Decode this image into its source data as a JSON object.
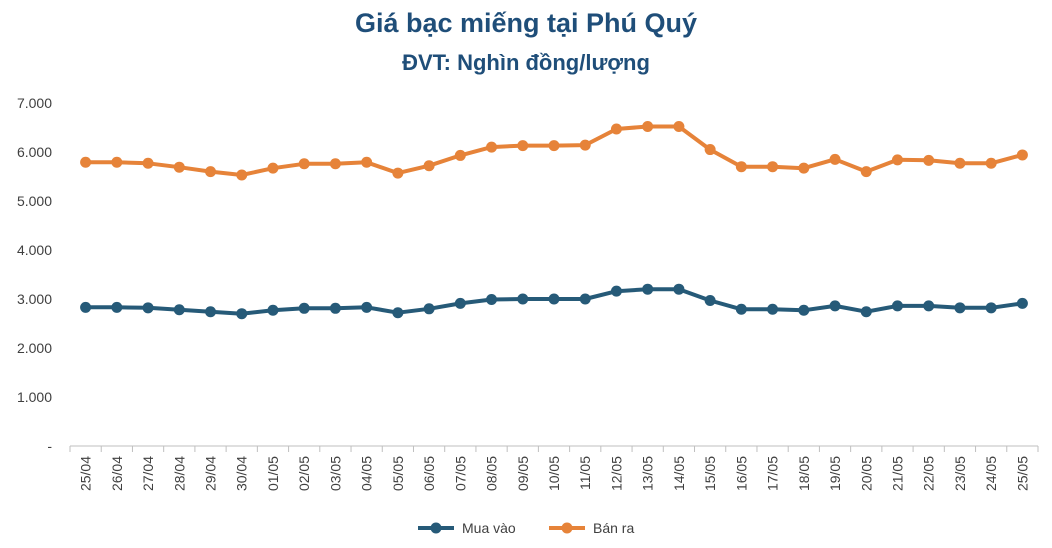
{
  "chart_data": {
    "type": "line",
    "title": "Giá bạc miếng tại Phú Quý",
    "subtitle": "ĐVT: Nghìn đồng/lượng",
    "xlabel": "",
    "ylabel": "",
    "ylim": [
      0,
      7000
    ],
    "y_ticks": [
      0,
      1000,
      2000,
      3000,
      4000,
      5000,
      6000,
      7000
    ],
    "y_tick_labels": [
      "-",
      "1.000",
      "2.000",
      "3.000",
      "4.000",
      "5.000",
      "6.000",
      "7.000"
    ],
    "grid": false,
    "legend_position": "bottom",
    "categories": [
      "25/04",
      "26/04",
      "27/04",
      "28/04",
      "29/04",
      "30/04",
      "01/05",
      "02/05",
      "03/05",
      "04/05",
      "05/05",
      "06/05",
      "07/05",
      "08/05",
      "09/05",
      "10/05",
      "11/05",
      "12/05",
      "13/05",
      "14/05",
      "15/05",
      "16/05",
      "17/05",
      "18/05",
      "19/05",
      "20/05",
      "21/05",
      "22/05",
      "23/05",
      "24/05",
      "25/05"
    ],
    "series": [
      {
        "name": "Mua vào",
        "color": "#265a78",
        "values": [
          2830,
          2830,
          2820,
          2780,
          2740,
          2700,
          2770,
          2810,
          2810,
          2830,
          2720,
          2800,
          2910,
          2990,
          3000,
          3000,
          3000,
          3160,
          3200,
          3200,
          2970,
          2790,
          2790,
          2770,
          2860,
          2740,
          2860,
          2860,
          2820,
          2820,
          2910
        ]
      },
      {
        "name": "Bán ra",
        "color": "#e68339",
        "values": [
          5790,
          5790,
          5770,
          5690,
          5600,
          5530,
          5670,
          5760,
          5760,
          5790,
          5570,
          5720,
          5930,
          6100,
          6130,
          6130,
          6140,
          6470,
          6520,
          6520,
          6050,
          5700,
          5700,
          5670,
          5850,
          5600,
          5840,
          5830,
          5770,
          5770,
          5940
        ]
      }
    ]
  }
}
